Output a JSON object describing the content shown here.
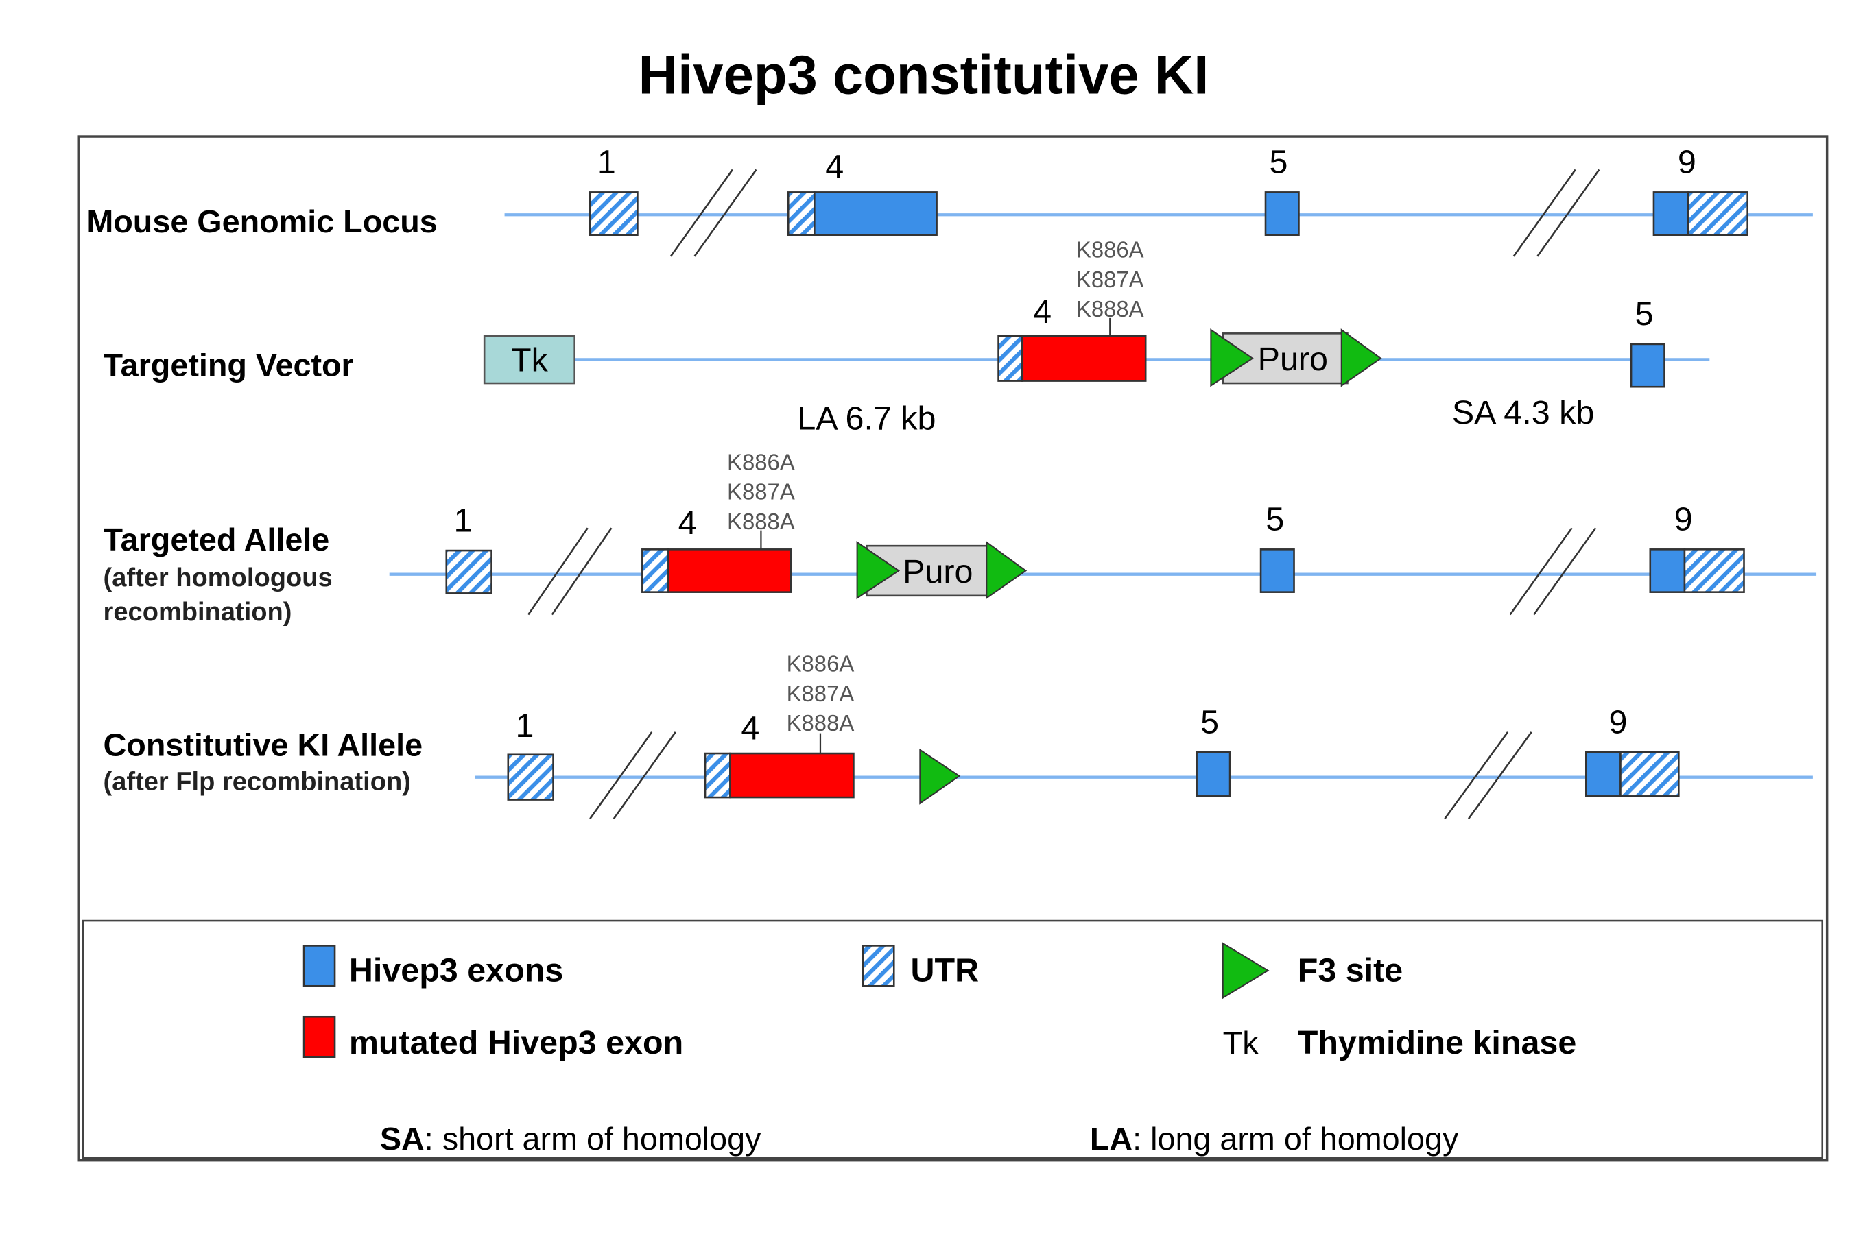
{
  "title": "Hivep3 constitutive KI",
  "colors": {
    "exon": "#3b8fe8",
    "mutated_exon": "#ff0000",
    "f3_site": "#11bb11",
    "tk": "#a8d8d8",
    "puro": "#d8d8d8",
    "backbone": "#7fb4f0"
  },
  "rows": {
    "genomic": {
      "label": "Mouse Genomic Locus",
      "exons": [
        "1",
        "4",
        "5",
        "9"
      ]
    },
    "vector": {
      "label": "Targeting Vector",
      "tk": "Tk",
      "exon4": "4",
      "exon5": "5",
      "mutations": [
        "K886A",
        "K887A",
        "K888A"
      ],
      "puro": "Puro",
      "la": "LA 6.7 kb",
      "sa": "SA 4.3 kb"
    },
    "targeted": {
      "label": "Targeted Allele",
      "sub1": "(after homologous",
      "sub2": "recombination)",
      "exons": [
        "1",
        "4",
        "5",
        "9"
      ],
      "mutations": [
        "K886A",
        "K887A",
        "K888A"
      ],
      "puro": "Puro"
    },
    "ki": {
      "label": "Constitutive KI Allele",
      "sub1": "(after Flp recombination)",
      "exons": [
        "1",
        "4",
        "5",
        "9"
      ],
      "mutations": [
        "K886A",
        "K887A",
        "K888A"
      ]
    }
  },
  "legend": {
    "exons": "Hivep3 exons",
    "utr": "UTR",
    "f3": "F3 site",
    "mutated": "mutated Hivep3 exon",
    "tk_symbol": "Tk",
    "tk": "Thymidine kinase",
    "sa_abbr": "SA",
    "sa_text": ": short arm of homology",
    "la_abbr": "LA",
    "la_text": ": long arm of homology"
  }
}
